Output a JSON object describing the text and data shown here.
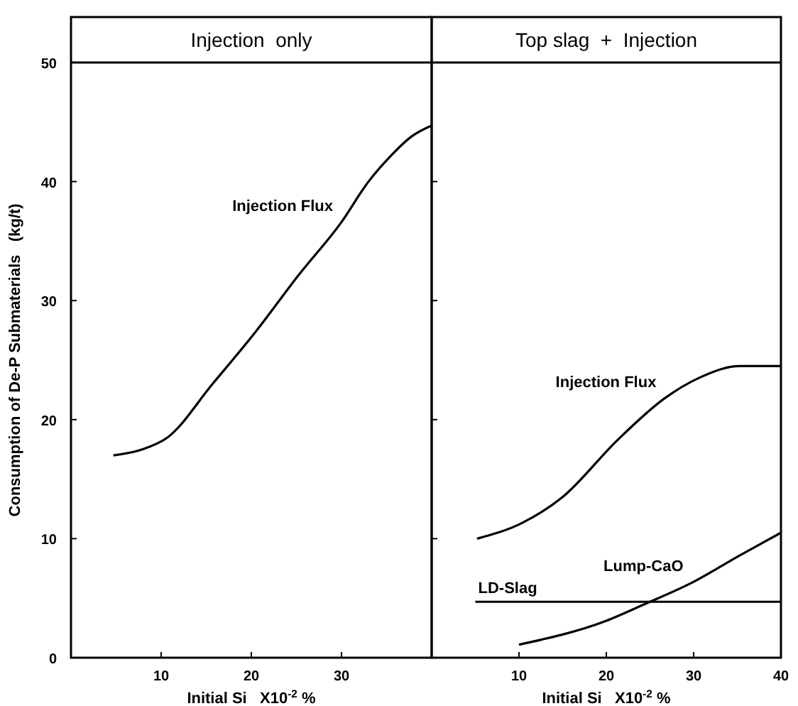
{
  "chart_data": [
    {
      "type": "line",
      "title": "Injection  only",
      "xlabel": "Initial Si   X10$^{-2}$ %",
      "ylabel": "Consumption of De-P Submaterials   (kg/t)",
      "xlim": [
        0,
        40
      ],
      "xticks": [
        10,
        20,
        30
      ],
      "ylim": [
        0,
        50
      ],
      "yticks": [
        0,
        10,
        20,
        30,
        40,
        50
      ],
      "grid": false,
      "series": [
        {
          "name": "Injection Flux",
          "color": "#000000",
          "x": [
            4.7,
            7.9,
            10.7,
            15.7,
            20.5,
            25.2,
            30,
            33,
            35.4,
            37.8,
            40
          ],
          "values": [
            17,
            17.5,
            18.5,
            23,
            27.4,
            32.1,
            36.6,
            40,
            42.1,
            43.8,
            44.7
          ]
        }
      ]
    },
    {
      "type": "line",
      "title": "Top slag  +  Injection",
      "xlabel": "Initial Si   X10$^{-2}$ %",
      "xlim": [
        0,
        40
      ],
      "xticks": [
        10,
        20,
        30,
        40
      ],
      "ylim": [
        0,
        50
      ],
      "yticks": [
        0,
        10,
        20,
        30,
        40,
        50
      ],
      "tick_labels": "x",
      "grid": false,
      "series": [
        {
          "name": "Injection Flux",
          "color": "#000000",
          "x": [
            5.2,
            10.3,
            15,
            21.3,
            26.7,
            30.6,
            35.3,
            40
          ],
          "values": [
            10,
            11.3,
            13.5,
            18.3,
            21.8,
            23.5,
            24.5,
            24.5
          ]
        },
        {
          "name": "Lump-CaO",
          "color": "#000000",
          "x": [
            10,
            20,
            24.4,
            29.8,
            35.3,
            40
          ],
          "values": [
            1.1,
            3.1,
            4.5,
            6.3,
            8.6,
            10.5
          ]
        },
        {
          "name": "LD-Slag",
          "color": "#000000",
          "x": [
            5,
            40
          ],
          "values": [
            4.7,
            4.7
          ]
        }
      ]
    }
  ]
}
